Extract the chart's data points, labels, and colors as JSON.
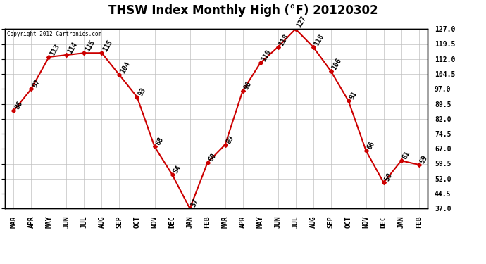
{
  "title": "THSW Index Monthly High (°F) 20120302",
  "copyright": "Copyright 2012 Cartronics.com",
  "months": [
    "MAR",
    "APR",
    "MAY",
    "JUN",
    "JUL",
    "AUG",
    "SEP",
    "OCT",
    "NOV",
    "DEC",
    "JAN",
    "FEB",
    "MAR",
    "APR",
    "MAY",
    "JUN",
    "JUL",
    "AUG",
    "SEP",
    "OCT",
    "NOV",
    "DEC",
    "JAN",
    "FEB"
  ],
  "values": [
    86,
    97,
    113,
    114,
    115,
    115,
    104,
    93,
    68,
    54,
    37,
    60,
    69,
    96,
    110,
    118,
    127,
    118,
    106,
    91,
    66,
    50,
    61,
    59
  ],
  "line_color": "#cc0000",
  "marker_color": "#cc0000",
  "bg_color": "#ffffff",
  "plot_bg_color": "#ffffff",
  "grid_color": "#c0c0c0",
  "ylim_min": 37.0,
  "ylim_max": 127.0,
  "yticks": [
    37.0,
    44.5,
    52.0,
    59.5,
    67.0,
    74.5,
    82.0,
    89.5,
    97.0,
    104.5,
    112.0,
    119.5,
    127.0
  ],
  "ytick_labels": [
    "37.0",
    "44.5",
    "52.0",
    "59.5",
    "67.0",
    "74.5",
    "82.0",
    "89.5",
    "97.0",
    "104.5",
    "112.0",
    "119.5",
    "127.0"
  ],
  "title_fontsize": 12,
  "tick_fontsize": 7,
  "annotation_fontsize": 7,
  "border_color": "#000000",
  "annotation_rotation": 60
}
